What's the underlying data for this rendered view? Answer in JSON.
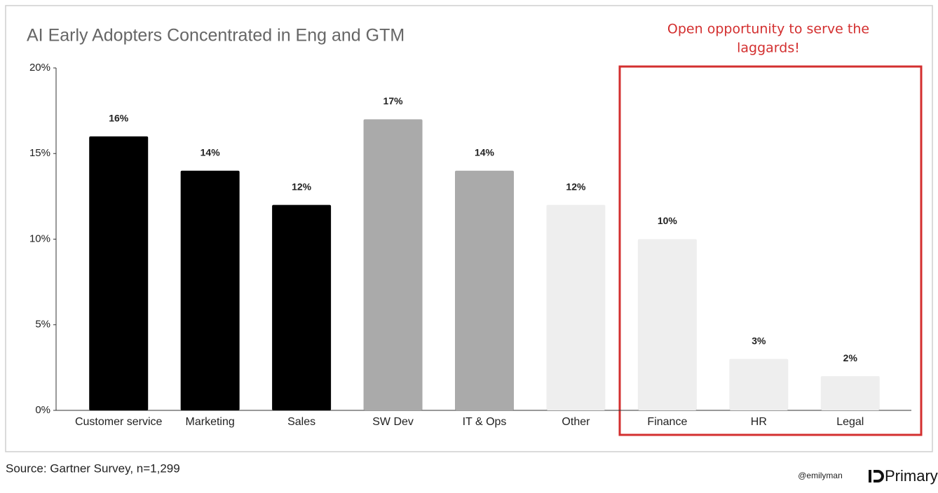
{
  "chart_data": {
    "type": "bar",
    "title": "AI Early Adopters Concentrated in Eng and GTM",
    "categories": [
      "Customer service",
      "Marketing",
      "Sales",
      "SW Dev",
      "IT & Ops",
      "Other",
      "Finance",
      "HR",
      "Legal"
    ],
    "values": [
      16,
      14,
      12,
      17,
      14,
      12,
      10,
      3,
      2
    ],
    "value_labels": [
      "16%",
      "14%",
      "12%",
      "17%",
      "14%",
      "12%",
      "10%",
      "3%",
      "2%"
    ],
    "colors": [
      "#000000",
      "#000000",
      "#000000",
      "#aaaaaa",
      "#aaaaaa",
      "#eeeeee",
      "#eeeeee",
      "#eeeeee",
      "#eeeeee"
    ],
    "ylim": [
      0,
      20
    ],
    "yticks": [
      {
        "value": 0,
        "label": "0%"
      },
      {
        "value": 5,
        "label": "5%"
      },
      {
        "value": 10,
        "label": "10%"
      },
      {
        "value": 15,
        "label": "15%"
      },
      {
        "value": 20,
        "label": "20%"
      }
    ],
    "annotation": [
      "Open opportunity to serve the",
      "laggards!"
    ],
    "source": "Source: Gartner Survey, n=1,299",
    "handle": "@emilyman",
    "logo": "Primary"
  }
}
